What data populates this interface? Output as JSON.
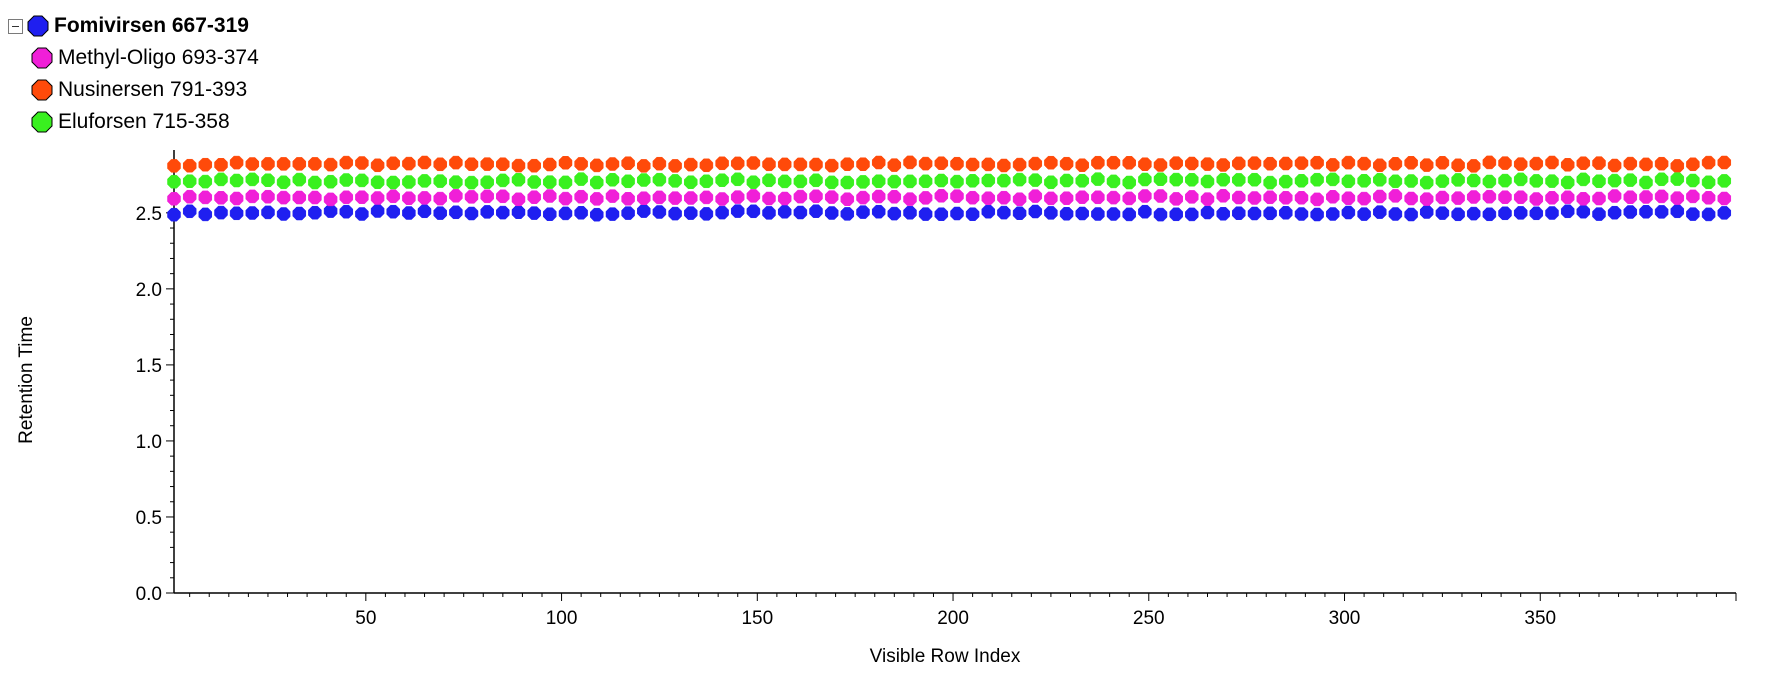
{
  "chart_data": {
    "type": "scatter",
    "xlabel": "Visible Row Index",
    "ylabel": "Retention Time",
    "xlim": [
      1,
      400
    ],
    "ylim": [
      0.0,
      2.9
    ],
    "xticks": [
      "50",
      "100",
      "150",
      "200",
      "250",
      "300",
      "350"
    ],
    "yticks": [
      "0.0",
      "0.5",
      "1.0",
      "1.5",
      "2.0",
      "2.5"
    ],
    "grid": false,
    "legend_position": "top-left",
    "series": [
      {
        "name": "Fomivirsen 667-319",
        "color": "#1f1ff0",
        "y_level": 2.5,
        "y_noise": 0.012
      },
      {
        "name": "Methyl-Oligo 693-374",
        "color": "#f01fd8",
        "y_level": 2.6,
        "y_noise": 0.012
      },
      {
        "name": "Nusinersen 791-393",
        "color": "#ff4a0a",
        "y_level": 2.82,
        "y_noise": 0.012
      },
      {
        "name": "Eluforsen 715-358",
        "color": "#39f01f",
        "y_level": 2.71,
        "y_noise": 0.012
      }
    ],
    "point_step": 4,
    "x_start": 1,
    "x_end": 399
  }
}
